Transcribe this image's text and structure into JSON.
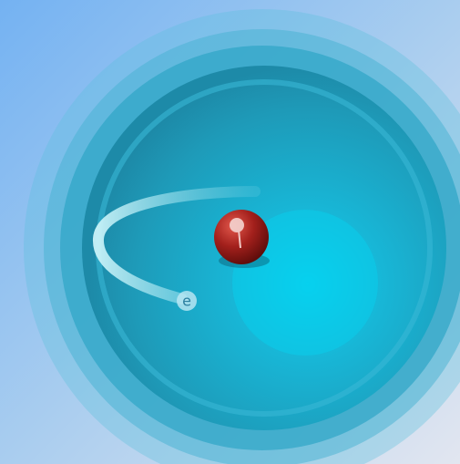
{
  "electron": {
    "label": "e"
  }
}
